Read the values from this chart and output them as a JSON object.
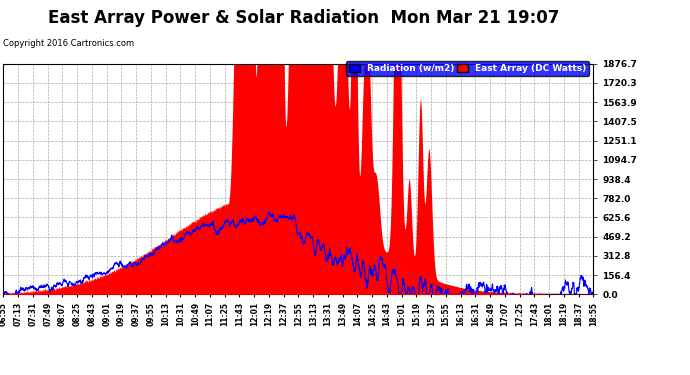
{
  "title": "East Array Power & Solar Radiation  Mon Mar 21 19:07",
  "copyright": "Copyright 2016 Cartronics.com",
  "legend_labels": [
    "Radiation (w/m2)",
    "East Array (DC Watts)"
  ],
  "y_ticks": [
    0.0,
    156.4,
    312.8,
    469.2,
    625.6,
    782.0,
    938.4,
    1094.7,
    1251.1,
    1407.5,
    1563.9,
    1720.3,
    1876.7
  ],
  "y_max": 1876.7,
  "y_min": 0.0,
  "background_color": "#ffffff",
  "plot_bg": "#ffffff",
  "grid_color": "#aaaaaa",
  "fill_color_red": "#ff0000",
  "line_color_blue": "#0000ff",
  "title_fontsize": 12,
  "x_labels": [
    "06:55",
    "07:13",
    "07:31",
    "07:49",
    "08:07",
    "08:25",
    "08:43",
    "09:01",
    "09:19",
    "09:37",
    "09:55",
    "10:13",
    "10:31",
    "10:49",
    "11:07",
    "11:25",
    "11:43",
    "12:01",
    "12:19",
    "12:37",
    "12:55",
    "13:13",
    "13:31",
    "13:49",
    "14:07",
    "14:25",
    "14:43",
    "15:01",
    "15:19",
    "15:37",
    "15:55",
    "16:13",
    "16:31",
    "16:49",
    "17:07",
    "17:25",
    "17:43",
    "18:01",
    "18:19",
    "18:37",
    "18:55"
  ]
}
